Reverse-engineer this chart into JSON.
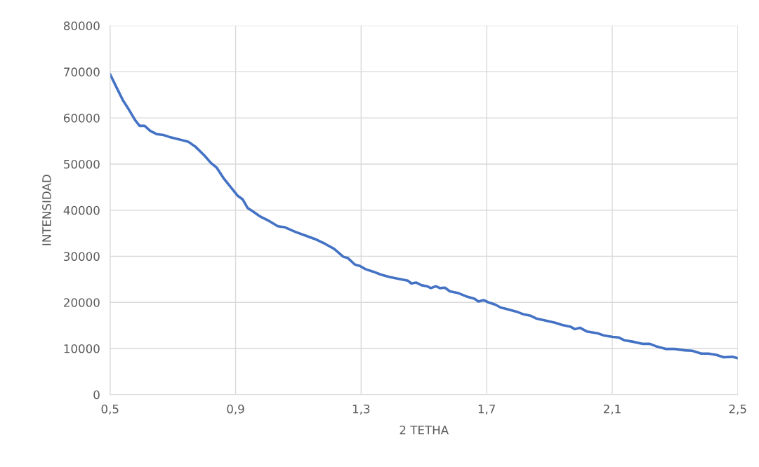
{
  "chart_data": {
    "type": "line",
    "xlabel": "2 TETHA",
    "ylabel": "INTENSIDAD",
    "x": [
      0.5,
      0.52,
      0.542,
      0.56,
      0.58,
      0.594,
      0.61,
      0.628,
      0.648,
      0.67,
      0.688,
      0.717,
      0.75,
      0.773,
      0.8,
      0.822,
      0.84,
      0.862,
      0.889,
      0.907,
      0.923,
      0.938,
      0.956,
      0.979,
      1.008,
      1.035,
      1.057,
      1.09,
      1.126,
      1.158,
      1.185,
      1.214,
      1.243,
      1.258,
      1.28,
      1.296,
      1.314,
      1.337,
      1.364,
      1.39,
      1.426,
      1.449,
      1.46,
      1.475,
      1.493,
      1.51,
      1.522,
      1.538,
      1.551,
      1.567,
      1.583,
      1.61,
      1.639,
      1.661,
      1.674,
      1.69,
      1.706,
      1.728,
      1.744,
      1.762,
      1.795,
      1.818,
      1.84,
      1.858,
      1.891,
      1.918,
      1.941,
      1.968,
      1.981,
      1.997,
      2.019,
      2.053,
      2.075,
      2.102,
      2.12,
      2.138,
      2.164,
      2.198,
      2.22,
      2.243,
      2.272,
      2.299,
      2.332,
      2.355,
      2.384,
      2.406,
      2.433,
      2.455,
      2.482,
      2.5
    ],
    "series": [
      {
        "color": "#4472c4",
        "values": [
          69500,
          66700,
          63700,
          61800,
          59500,
          58300,
          58300,
          57200,
          56500,
          56300,
          55900,
          55400,
          54800,
          53700,
          51900,
          50200,
          49200,
          46900,
          44600,
          43100,
          42300,
          40500,
          39700,
          38600,
          37600,
          36500,
          36300,
          35300,
          34400,
          33600,
          32700,
          31600,
          29900,
          29600,
          28200,
          27900,
          27200,
          26700,
          26000,
          25500,
          25000,
          24700,
          24100,
          24300,
          23700,
          23500,
          23100,
          23500,
          23100,
          23200,
          22400,
          22000,
          21200,
          20800,
          20200,
          20500,
          20000,
          19500,
          18900,
          18600,
          18000,
          17400,
          17100,
          16500,
          16000,
          15600,
          15100,
          14700,
          14200,
          14500,
          13700,
          13300,
          12800,
          12500,
          12400,
          11800,
          11500,
          11000,
          11000,
          10400,
          9900,
          9900,
          9600,
          9500,
          8900,
          8900,
          8600,
          8100,
          8200,
          7900
        ]
      }
    ],
    "xlim": [
      0.5,
      2.5
    ],
    "xticks": [
      {
        "value": 0.5,
        "label": "0,5"
      },
      {
        "value": 0.9,
        "label": "0,9"
      },
      {
        "value": 1.3,
        "label": "1,3"
      },
      {
        "value": 1.7,
        "label": "1,7"
      },
      {
        "value": 2.1,
        "label": "2,1"
      },
      {
        "value": 2.5,
        "label": "2,5"
      }
    ],
    "ylim": [
      0,
      80000
    ],
    "yticks": [
      0,
      10000,
      20000,
      30000,
      40000,
      50000,
      60000,
      70000,
      80000
    ],
    "grid": true,
    "legend": false,
    "marker": "none",
    "line_style": "solid"
  }
}
